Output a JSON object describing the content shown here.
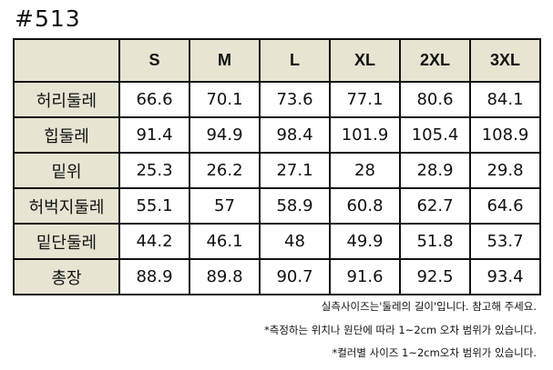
{
  "title": "#513",
  "table": {
    "header": [
      "S",
      "M",
      "L",
      "XL",
      "2XL",
      "3XL"
    ],
    "rows": [
      {
        "label": "허리둘레",
        "values": [
          66.6,
          70.1,
          73.6,
          77.1,
          80.6,
          84.1
        ]
      },
      {
        "label": "힙둘레",
        "values": [
          91.4,
          94.9,
          98.4,
          101.9,
          105.4,
          108.9
        ]
      },
      {
        "label": "밑위",
        "values": [
          25.3,
          26.2,
          27.1,
          28,
          28.9,
          29.8
        ]
      },
      {
        "label": "허벅지둘레",
        "values": [
          55.1,
          57,
          58.9,
          60.8,
          62.7,
          64.6
        ]
      },
      {
        "label": "밑단둘레",
        "values": [
          44.2,
          46.1,
          48,
          49.9,
          51.8,
          53.7
        ]
      },
      {
        "label": "총장",
        "values": [
          88.9,
          89.8,
          90.7,
          91.6,
          92.5,
          93.4
        ]
      }
    ]
  },
  "notes": [
    "실측사이즈는'둘레의 길이'입니다. 참고해 주세요.",
    "*측정하는 위치나 원단에 따라 1~2cm 오차 범위가 있습니다.",
    "*컬러별 사이즈 1~2cm오차 범위가 있습니다."
  ]
}
